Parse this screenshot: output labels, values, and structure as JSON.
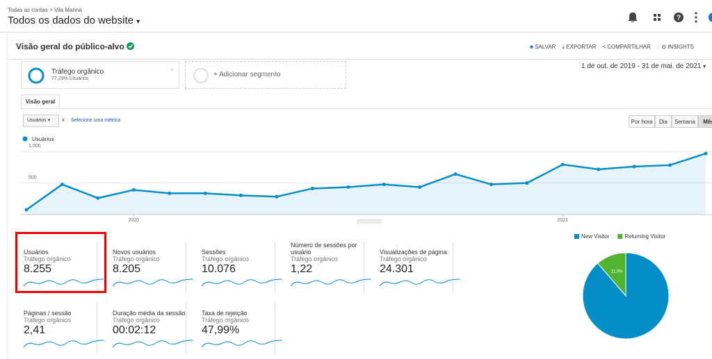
{
  "header": {
    "breadcrumb": "Todas as contas > Vila Marina",
    "property": "Todos os dados do website"
  },
  "report": {
    "title": "Visão geral do público-alvo",
    "actions": [
      "SALVAR",
      "EXPORTAR",
      "COMPARTILHAR",
      "INSIGHTS"
    ],
    "segment": {
      "name": "Tráfego orgânico",
      "share": "77,29% Usuários"
    },
    "add_segment": "+ Adicionar segmento",
    "date_range": "1 de out. de 2019 - 31 de mai. de 2021",
    "tab": "Visão geral",
    "metric": "Usuários",
    "metric_remove": "x",
    "select_metric": "Selecione uma métrica",
    "granularity": [
      "Por hora",
      "Dia",
      "Semana",
      "Mês"
    ]
  },
  "metrics": [
    {
      "name": "Usuários",
      "segment": "Tráfego orgânico",
      "value": "8.255"
    },
    {
      "name": "Novos usuários",
      "segment": "Tráfego orgânico",
      "value": "8.205"
    },
    {
      "name": "Sessões",
      "segment": "Tráfego orgânico",
      "value": "10.076"
    },
    {
      "name": "Número de sessões por usuário",
      "segment": "Tráfego orgânico",
      "value": "1,22"
    },
    {
      "name": "Visualizações de página",
      "segment": "Tráfego orgânico",
      "value": "24.301"
    },
    {
      "name": "Páginas / sessão",
      "segment": "Tráfego orgânico",
      "value": "2,41"
    },
    {
      "name": "Duração média da sessão",
      "segment": "Tráfego orgânico",
      "value": "00:02:12"
    },
    {
      "name": "Taxa de rejeição",
      "segment": "Tráfego orgânico",
      "value": "47,99%"
    }
  ],
  "chart_data": [
    {
      "type": "line",
      "categories": [
        null,
        null,
        null,
        "2020",
        null,
        null,
        null,
        null,
        null,
        null,
        null,
        null,
        null,
        null,
        null,
        "2021",
        null,
        null,
        null,
        null
      ],
      "series": [
        {
          "name": "Usuários",
          "color": "#058dc7",
          "values": [
            76,
            478,
            261,
            391,
            337,
            337,
            304,
            283,
            413,
            435,
            478,
            435,
            641,
            478,
            500,
            793,
            717,
            761,
            783,
            967
          ]
        }
      ],
      "ylim": [
        0,
        1100
      ],
      "yticks": [
        500,
        {
          "value": 1000,
          "label": "1.000"
        }
      ],
      "grid": true
    },
    {
      "type": "pie",
      "categories": [
        "New Visitor",
        "Returning Visitor"
      ],
      "values": [
        88.7,
        11.3
      ],
      "value_labels": [
        "88,7%",
        "11,3%"
      ],
      "colors": [
        "#058dc7",
        "#50b432"
      ]
    }
  ]
}
